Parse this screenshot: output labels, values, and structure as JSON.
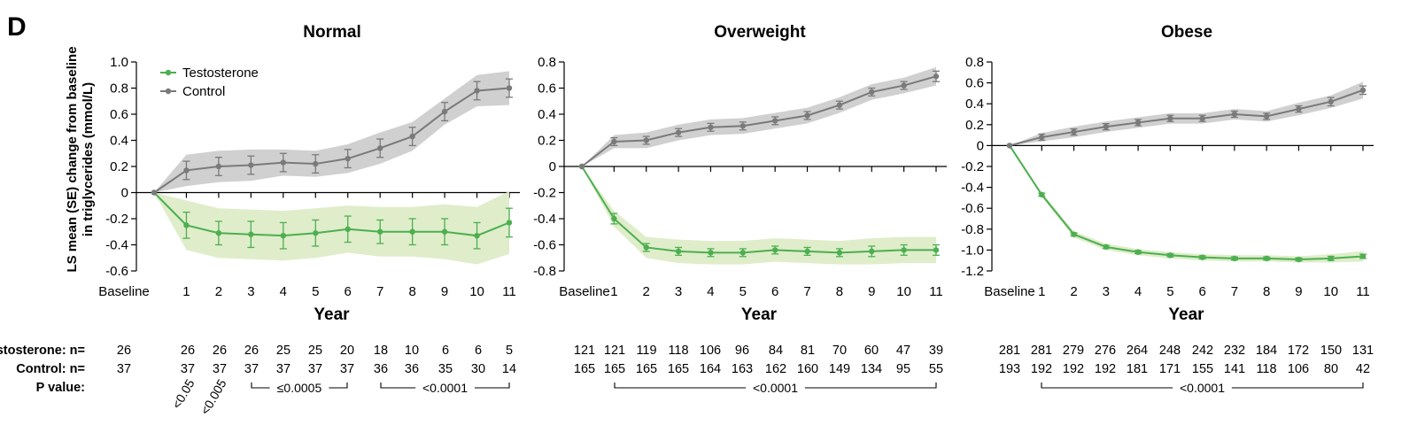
{
  "panel_letter": "D",
  "ylabel_line1": "LS mean (SE) change from baseline",
  "ylabel_line2": "in triglycerides (mmol/L)",
  "table_labels": {
    "testosterone": "Testosterone: n=",
    "control": "Control: n=",
    "pvalue": "P value:"
  },
  "colors": {
    "testosterone": "#4caf50",
    "testosterone_band": "#dcebc4",
    "control": "#7a7a7a",
    "control_band": "#c8c8c8"
  },
  "chart_data": [
    {
      "type": "line",
      "title": "Normal",
      "xlabel": "Year",
      "ylabel": "LS mean (SE) change from baseline in triglycerides (mmol/L)",
      "categories": [
        "Baseline",
        "1",
        "2",
        "3",
        "4",
        "5",
        "6",
        "7",
        "8",
        "9",
        "10",
        "11"
      ],
      "ylim": [
        -0.6,
        1.0
      ],
      "yticks": [
        -0.6,
        -0.4,
        -0.2,
        0,
        0.2,
        0.4,
        0.6,
        0.8,
        1.0
      ],
      "ytick_labels": [
        "-0.6",
        "-0.4",
        "-0.2",
        "0",
        "0.2",
        "0.4",
        "0.6",
        "0.8",
        "1.0"
      ],
      "legend": [
        "Testosterone",
        "Control"
      ],
      "legend_position": "top-left",
      "series": [
        {
          "name": "Testosterone",
          "values": [
            0,
            -0.25,
            -0.31,
            -0.32,
            -0.33,
            -0.31,
            -0.28,
            -0.3,
            -0.3,
            -0.3,
            -0.33,
            -0.23
          ],
          "se": [
            0,
            0.1,
            0.09,
            0.1,
            0.1,
            0.1,
            0.1,
            0.09,
            0.1,
            0.1,
            0.1,
            0.11
          ],
          "band": [
            0,
            0.19,
            0.19,
            0.19,
            0.19,
            0.19,
            0.18,
            0.19,
            0.19,
            0.21,
            0.22,
            0.24
          ]
        },
        {
          "name": "Control",
          "values": [
            0,
            0.17,
            0.2,
            0.21,
            0.23,
            0.22,
            0.26,
            0.34,
            0.43,
            0.62,
            0.78,
            0.8
          ],
          "se": [
            0,
            0.07,
            0.07,
            0.07,
            0.07,
            0.07,
            0.07,
            0.07,
            0.07,
            0.07,
            0.07,
            0.07
          ],
          "band": [
            0,
            0.12,
            0.12,
            0.12,
            0.1,
            0.1,
            0.11,
            0.12,
            0.11,
            0.1,
            0.12,
            0.13
          ]
        }
      ],
      "n_testosterone": [
        "26",
        "26",
        "26",
        "26",
        "25",
        "25",
        "20",
        "18",
        "10",
        "6",
        "6",
        "5"
      ],
      "n_control": [
        "37",
        "37",
        "37",
        "37",
        "37",
        "37",
        "37",
        "36",
        "36",
        "35",
        "30",
        "14"
      ],
      "pvalues": [
        {
          "text": "<0.05",
          "at": 1,
          "rotated": true
        },
        {
          "text": "<0.005",
          "at": 2,
          "rotated": true
        },
        {
          "text": "≤0.0005",
          "from": 3,
          "to": 6
        },
        {
          "text": "<0.0001",
          "from": 7,
          "to": 11
        }
      ]
    },
    {
      "type": "line",
      "title": "Overweight",
      "xlabel": "Year",
      "categories": [
        "Baseline",
        "1",
        "2",
        "3",
        "4",
        "5",
        "6",
        "7",
        "8",
        "9",
        "10",
        "11"
      ],
      "ylim": [
        -0.8,
        0.8
      ],
      "yticks": [
        -0.8,
        -0.6,
        -0.4,
        -0.2,
        0,
        0.2,
        0.4,
        0.6,
        0.8
      ],
      "ytick_labels": [
        "-0.8",
        "-0.6",
        "-0.4",
        "-0.2",
        "0",
        "0.2",
        "0.4",
        "0.6",
        "0.8"
      ],
      "series": [
        {
          "name": "Testosterone",
          "values": [
            0,
            -0.4,
            -0.62,
            -0.65,
            -0.66,
            -0.66,
            -0.64,
            -0.65,
            -0.66,
            -0.65,
            -0.64,
            -0.64
          ],
          "se": [
            0,
            0.04,
            0.03,
            0.03,
            0.03,
            0.03,
            0.03,
            0.03,
            0.03,
            0.04,
            0.04,
            0.04
          ],
          "band": [
            0,
            0.06,
            0.08,
            0.09,
            0.09,
            0.09,
            0.09,
            0.09,
            0.09,
            0.1,
            0.1,
            0.1
          ]
        },
        {
          "name": "Control",
          "values": [
            0,
            0.19,
            0.2,
            0.26,
            0.3,
            0.31,
            0.35,
            0.39,
            0.47,
            0.57,
            0.62,
            0.69
          ],
          "se": [
            0,
            0.03,
            0.03,
            0.03,
            0.03,
            0.03,
            0.03,
            0.03,
            0.03,
            0.03,
            0.03,
            0.04
          ],
          "band": [
            0,
            0.05,
            0.06,
            0.06,
            0.06,
            0.06,
            0.06,
            0.06,
            0.06,
            0.06,
            0.06,
            0.07
          ]
        }
      ],
      "n_testosterone": [
        "121",
        "121",
        "119",
        "118",
        "106",
        "96",
        "84",
        "81",
        "70",
        "60",
        "47",
        "39"
      ],
      "n_control": [
        "165",
        "165",
        "165",
        "165",
        "164",
        "163",
        "162",
        "160",
        "149",
        "134",
        "95",
        "55"
      ],
      "pvalues": [
        {
          "text": "<0.0001",
          "from": 1,
          "to": 11
        }
      ]
    },
    {
      "type": "line",
      "title": "Obese",
      "xlabel": "Year",
      "categories": [
        "Baseline",
        "1",
        "2",
        "3",
        "4",
        "5",
        "6",
        "7",
        "8",
        "9",
        "10",
        "11"
      ],
      "ylim": [
        -1.2,
        0.8
      ],
      "yticks": [
        -1.2,
        -1.0,
        -0.8,
        -0.6,
        -0.4,
        -0.2,
        0,
        0.2,
        0.4,
        0.6,
        0.8
      ],
      "ytick_labels": [
        "-1.2",
        "-1.0",
        "-0.8",
        "-0.6",
        "-0.4",
        "-0.2",
        "0",
        "0.2",
        "0.4",
        "0.6",
        "0.8"
      ],
      "series": [
        {
          "name": "Testosterone",
          "values": [
            0,
            -0.47,
            -0.85,
            -0.97,
            -1.02,
            -1.05,
            -1.07,
            -1.08,
            -1.08,
            -1.09,
            -1.08,
            -1.06
          ],
          "se": [
            0,
            0.015,
            0.015,
            0.015,
            0.015,
            0.015,
            0.015,
            0.015,
            0.015,
            0.015,
            0.02,
            0.02
          ],
          "band": [
            0,
            0.02,
            0.03,
            0.03,
            0.03,
            0.03,
            0.03,
            0.03,
            0.03,
            0.03,
            0.04,
            0.05
          ]
        },
        {
          "name": "Control",
          "values": [
            0,
            0.08,
            0.13,
            0.18,
            0.22,
            0.26,
            0.26,
            0.3,
            0.28,
            0.35,
            0.42,
            0.53
          ],
          "se": [
            0,
            0.03,
            0.03,
            0.03,
            0.03,
            0.03,
            0.03,
            0.03,
            0.03,
            0.03,
            0.04,
            0.04
          ],
          "band": [
            0,
            0.04,
            0.05,
            0.05,
            0.05,
            0.05,
            0.05,
            0.05,
            0.05,
            0.06,
            0.06,
            0.08
          ]
        }
      ],
      "n_testosterone": [
        "281",
        "281",
        "279",
        "276",
        "264",
        "248",
        "242",
        "232",
        "184",
        "172",
        "150",
        "131"
      ],
      "n_control": [
        "193",
        "192",
        "192",
        "192",
        "181",
        "171",
        "155",
        "141",
        "118",
        "106",
        "80",
        "42"
      ],
      "pvalues": [
        {
          "text": "<0.0001",
          "from": 1,
          "to": 11
        }
      ]
    }
  ]
}
